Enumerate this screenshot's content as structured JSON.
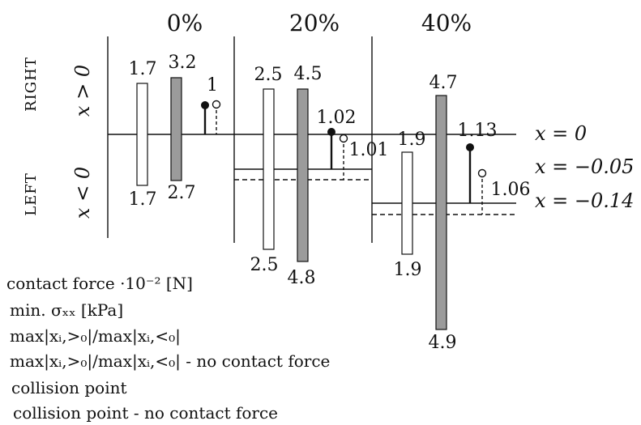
{
  "headers": [
    "0%",
    "20%",
    "40%"
  ],
  "side_labels": {
    "right": "RIGHT",
    "left": "LEFT",
    "right_cond": "x > 0",
    "left_cond": "x < 0"
  },
  "levels": [
    {
      "label": "x = 0"
    },
    {
      "label": "x = −0.05"
    },
    {
      "label": "x = −0.14"
    }
  ],
  "groups": [
    {
      "contact_up": "1.7",
      "contact_down": "1.7",
      "stress_up": "3.2",
      "stress_down": "2.7",
      "ratio": "1"
    },
    {
      "contact_up": "2.5",
      "contact_down": "2.5",
      "stress_up": "4.5",
      "stress_down": "4.8",
      "ratio": "1.02",
      "ratio_nc": "1.01"
    },
    {
      "contact_up": "1.9",
      "contact_down": "1.9",
      "stress_up": "4.7",
      "stress_down": "4.9",
      "ratio": "1.13",
      "ratio_nc": "1.06"
    }
  ],
  "legend": {
    "contact_force": "contact force ·10⁻² [N]",
    "min_stress": "min. σₓₓ [kPa]",
    "ratio": "max|xᵢ,>₀|/max|xᵢ,<₀|",
    "ratio_nc": "max|xᵢ,>₀|/max|xᵢ,<₀| - no contact force",
    "collision": "collision point",
    "collision_nc": "collision point - no contact force"
  },
  "colors": {
    "stress_fill": "#9b9b9b",
    "line": "#111111"
  }
}
